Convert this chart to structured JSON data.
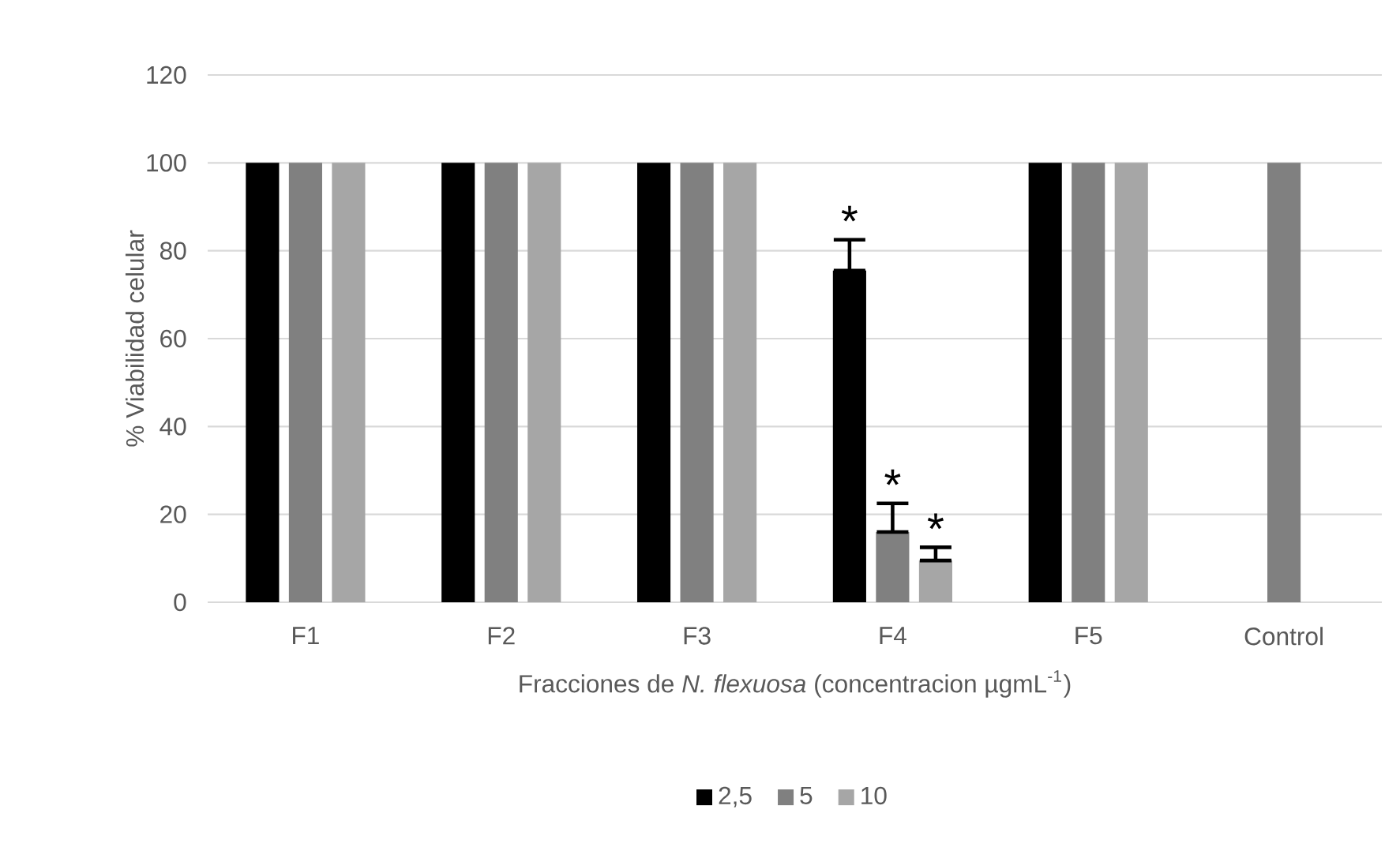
{
  "chart_data": {
    "type": "bar",
    "categories": [
      "F1",
      "F2",
      "F3",
      "F4",
      "F5",
      "Control"
    ],
    "series": [
      {
        "name": "2,5",
        "color": "#000000",
        "values": [
          100,
          100,
          100,
          75.5,
          100,
          null
        ],
        "errors": [
          null,
          null,
          null,
          [
            75.5,
            82.5
          ],
          null,
          null
        ]
      },
      {
        "name": "5",
        "color": "#808080",
        "values": [
          100,
          100,
          100,
          16,
          100,
          100
        ],
        "errors": [
          null,
          null,
          null,
          [
            16,
            22.5
          ],
          null,
          null
        ]
      },
      {
        "name": "10",
        "color": "#a6a6a6",
        "values": [
          100,
          100,
          100,
          9.5,
          100,
          null
        ],
        "errors": [
          null,
          null,
          null,
          [
            9.5,
            12.5
          ],
          null,
          null
        ]
      }
    ],
    "xlabel": "Fracciones de *N. flexuosa* (concentracion µgmL$^{-1}$)",
    "ylabel": "% Viabilidad celular",
    "ylim": [
      0,
      120
    ],
    "yticks": [
      0,
      20,
      40,
      60,
      80,
      100,
      120
    ],
    "grid": "y",
    "legend": "bottom",
    "annotations": [
      "*",
      "*",
      "*"
    ]
  }
}
